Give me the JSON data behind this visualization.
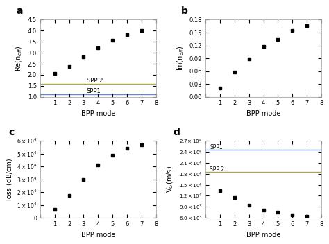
{
  "bpp_modes": [
    1,
    2,
    3,
    4,
    5,
    6,
    7
  ],
  "re_neff": [
    2.05,
    2.38,
    2.83,
    3.24,
    3.57,
    3.83,
    4.02
  ],
  "im_neff": [
    0.021,
    0.057,
    0.089,
    0.118,
    0.134,
    0.155,
    0.167
  ],
  "loss": [
    6500,
    17500,
    30000,
    41000,
    48500,
    54000,
    57000
  ],
  "vg": [
    13500.0,
    11500.0,
    9500.0,
    8200.0,
    7500.0,
    6800.0,
    6500.0
  ],
  "spp1_re": 1.13,
  "spp2_re": 1.59,
  "spp1_vg": 24500.0,
  "spp2_vg": 18500.0,
  "spp1_color": "#6688cc",
  "spp2_color": "#aaaa44",
  "marker_color": "black",
  "xlabel": "BPP mode",
  "panel_a_ylabel": "Re(n$_{eff}$)",
  "panel_b_ylabel": "Im(n$_{eff}$)",
  "panel_c_ylabel": "loss (dB/cm)",
  "panel_d_ylabel": "V$_G$(m/s)",
  "panel_labels": [
    "a",
    "b",
    "c",
    "d"
  ]
}
